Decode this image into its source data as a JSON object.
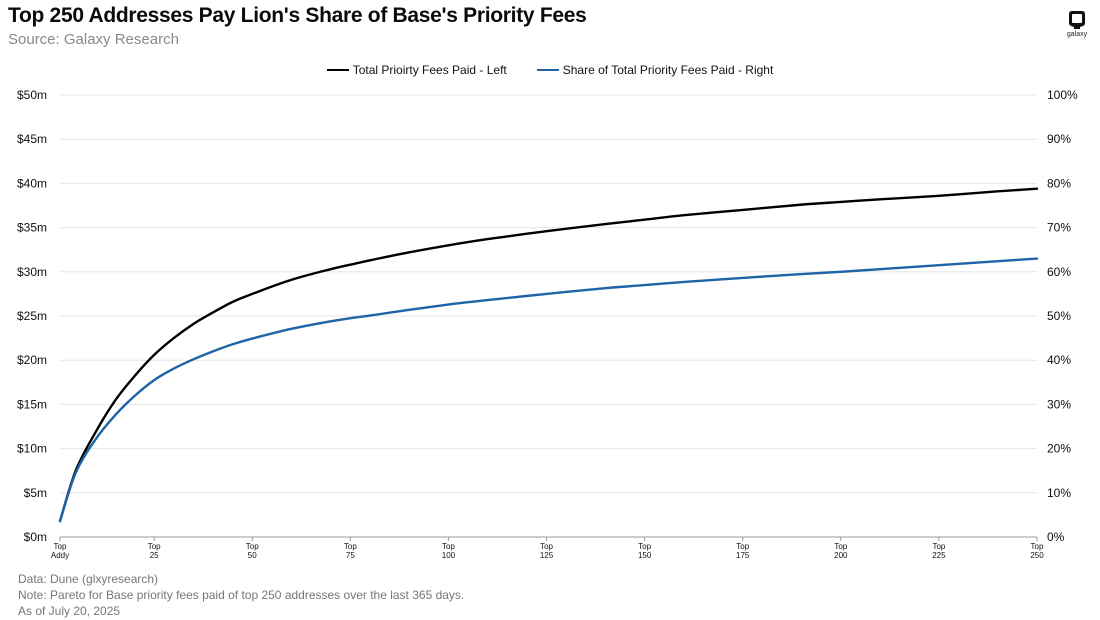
{
  "header": {
    "title": "Top 250 Addresses Pay Lion's Share of Base's Priority Fees",
    "subtitle": "Source: Galaxy Research"
  },
  "logo": {
    "text": "galaxy"
  },
  "legend": {
    "items": [
      {
        "label": "Total Prioirty Fees Paid - Left",
        "color": "#000000"
      },
      {
        "label": "Share of Total Priority Fees Paid - Right",
        "color": "#1f63a8"
      }
    ]
  },
  "footer": {
    "data_source": "Data: Dune (glxyresearch)",
    "note": "Note: Pareto for Base priority fees paid of top 250 addresses over the last 365 days.",
    "as_of": "As of July 20, 2025"
  },
  "chart_data": {
    "type": "line",
    "title": "Top 250 Addresses Pay Lion's Share of Base's Priority Fees",
    "grid": true,
    "legend_position": "top-center",
    "x": [
      1,
      5,
      10,
      15,
      20,
      25,
      30,
      35,
      40,
      45,
      50,
      60,
      70,
      75,
      80,
      90,
      100,
      110,
      125,
      140,
      150,
      160,
      175,
      190,
      200,
      210,
      225,
      240,
      250
    ],
    "xlim": [
      1,
      250
    ],
    "x_ticks": [
      {
        "value": 1,
        "line1": "Top",
        "line2": "Addy"
      },
      {
        "value": 25,
        "line1": "Top",
        "line2": "25"
      },
      {
        "value": 50,
        "line1": "Top",
        "line2": "50"
      },
      {
        "value": 75,
        "line1": "Top",
        "line2": "75"
      },
      {
        "value": 100,
        "line1": "Top",
        "line2": "100"
      },
      {
        "value": 125,
        "line1": "Top",
        "line2": "125"
      },
      {
        "value": 150,
        "line1": "Top",
        "line2": "150"
      },
      {
        "value": 175,
        "line1": "Top",
        "line2": "175"
      },
      {
        "value": 200,
        "line1": "Top",
        "line2": "200"
      },
      {
        "value": 225,
        "line1": "Top",
        "line2": "225"
      },
      {
        "value": 250,
        "line1": "Top",
        "line2": "250"
      }
    ],
    "y_left": {
      "ylim": [
        0,
        50
      ],
      "ticks": [
        0,
        5,
        10,
        15,
        20,
        25,
        30,
        35,
        40,
        45,
        50
      ],
      "tick_labels": [
        "$0m",
        "$5m",
        "$10m",
        "$15m",
        "$20m",
        "$25m",
        "$30m",
        "$35m",
        "$40m",
        "$45m",
        "$50m"
      ]
    },
    "y_right": {
      "ylim": [
        0,
        100
      ],
      "ticks": [
        0,
        10,
        20,
        30,
        40,
        50,
        60,
        70,
        80,
        90,
        100
      ],
      "tick_labels": [
        "0%",
        "10%",
        "20%",
        "30%",
        "40%",
        "50%",
        "60%",
        "70%",
        "80%",
        "90%",
        "100%"
      ]
    },
    "series": [
      {
        "name": "Total Prioirty Fees Paid - Left",
        "axis": "left",
        "color": "#000000",
        "values": [
          1.8,
          7.5,
          11.8,
          15.4,
          18.2,
          20.6,
          22.5,
          24.1,
          25.4,
          26.6,
          27.5,
          29.1,
          30.3,
          30.8,
          31.3,
          32.2,
          33.0,
          33.7,
          34.6,
          35.4,
          35.9,
          36.4,
          37.0,
          37.6,
          37.9,
          38.2,
          38.6,
          39.1,
          39.4
        ]
      },
      {
        "name": "Share of Total Priority Fees Paid - Right",
        "axis": "right",
        "color": "#1f63a8",
        "values": [
          3.6,
          14.5,
          22.0,
          27.5,
          31.9,
          35.5,
          38.1,
          40.2,
          42.0,
          43.6,
          44.9,
          47.1,
          48.8,
          49.5,
          50.1,
          51.4,
          52.6,
          53.6,
          55.0,
          56.3,
          57.0,
          57.7,
          58.6,
          59.5,
          60.0,
          60.6,
          61.5,
          62.4,
          63.0
        ]
      }
    ]
  }
}
